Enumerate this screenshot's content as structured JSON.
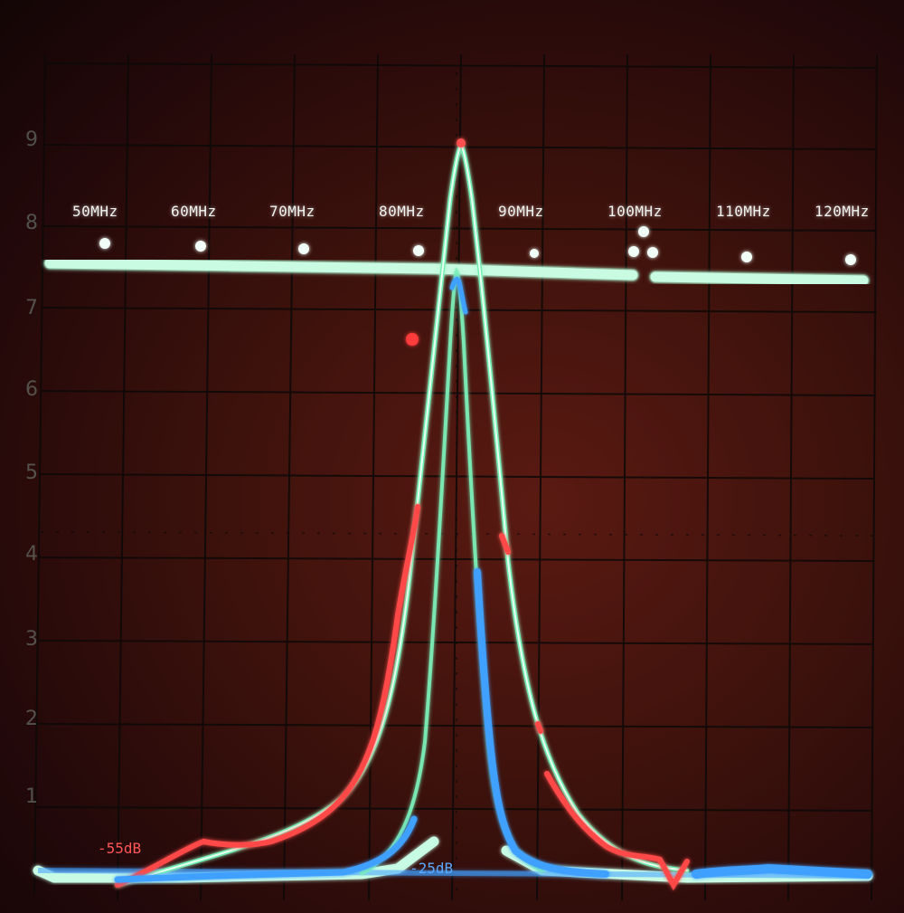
{
  "scope": {
    "frequency_markers": [
      "50MHz",
      "60MHz",
      "70MHz",
      "80MHz",
      "90MHz",
      "100MHz",
      "110MHz",
      "120MHz"
    ],
    "graticule_numbers": [
      "1",
      "2",
      "3",
      "4",
      "5",
      "6",
      "7",
      "8",
      "9"
    ],
    "trace_labels": {
      "red": "-55dB",
      "blue": "-25dB"
    },
    "colors": {
      "background": "#3e120c",
      "grid": "#0d0a08",
      "green_trace": "#7cf0b0",
      "red_trace": "#ff4a4a",
      "blue_trace": "#3fa0ff",
      "baseline": "#e6fff2"
    }
  }
}
